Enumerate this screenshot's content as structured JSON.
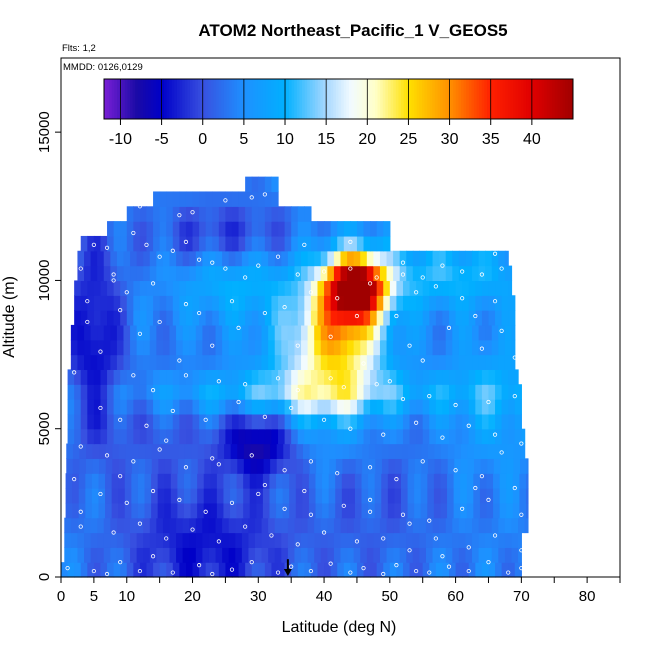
{
  "chart_data": {
    "type": "heatmap",
    "title": "ATOM2 Northeast_Pacific_1 V_GEOS5",
    "notes": [
      "Flts: 1,2",
      "MMDD: 0126,0129"
    ],
    "xlabel": "Latitude (deg N)",
    "ylabel": "Altitude (m)",
    "xlim": [
      0,
      85
    ],
    "ylim": [
      0,
      17500
    ],
    "x_ticks": [
      0,
      5,
      10,
      20,
      30,
      40,
      50,
      60,
      70,
      80
    ],
    "x_minor_ticks": [
      15,
      25,
      35,
      45,
      55,
      65,
      75,
      85
    ],
    "y_ticks": [
      0,
      5000,
      10000,
      15000
    ],
    "colorbar": {
      "min": -12,
      "max": 45,
      "step": 5,
      "tick_values": [
        -10,
        -5,
        0,
        5,
        10,
        15,
        20,
        25,
        30,
        35,
        40
      ],
      "tick_labels": [
        "-10",
        "-5",
        "0",
        "5",
        "10",
        "15",
        "20",
        "25",
        "30",
        "35",
        "40"
      ],
      "stops": [
        {
          "v": -12,
          "c": "#7a1fd6"
        },
        {
          "v": -8,
          "c": "#1a0aa6"
        },
        {
          "v": -5,
          "c": "#0000c8"
        },
        {
          "v": 0,
          "c": "#3850e0"
        },
        {
          "v": 5,
          "c": "#1e90ff"
        },
        {
          "v": 10,
          "c": "#00b0ff"
        },
        {
          "v": 15,
          "c": "#a8d8ff"
        },
        {
          "v": 18,
          "c": "#f2fbff"
        },
        {
          "v": 21,
          "c": "#ffffc8"
        },
        {
          "v": 25,
          "c": "#ffe000"
        },
        {
          "v": 30,
          "c": "#ff9000"
        },
        {
          "v": 35,
          "c": "#ff2000"
        },
        {
          "v": 40,
          "c": "#e00000"
        },
        {
          "v": 45,
          "c": "#a00000"
        }
      ]
    },
    "region": {
      "altitude_step": 500,
      "profile": [
        {
          "alt": 0,
          "lat": [
            0,
            70
          ]
        },
        {
          "alt": 500,
          "lat": [
            0.5,
            70
          ]
        },
        {
          "alt": 1000,
          "lat": [
            0.5,
            70
          ]
        },
        {
          "alt": 1500,
          "lat": [
            0.5,
            71
          ]
        },
        {
          "alt": 2000,
          "lat": [
            0.7,
            71
          ]
        },
        {
          "alt": 2500,
          "lat": [
            0.7,
            71
          ]
        },
        {
          "alt": 3000,
          "lat": [
            0.7,
            71
          ]
        },
        {
          "alt": 3500,
          "lat": [
            0.8,
            71
          ]
        },
        {
          "alt": 4000,
          "lat": [
            0.8,
            70.5
          ]
        },
        {
          "alt": 4500,
          "lat": [
            1,
            70.5
          ]
        },
        {
          "alt": 5000,
          "lat": [
            1,
            70
          ]
        },
        {
          "alt": 5500,
          "lat": [
            1,
            70
          ]
        },
        {
          "alt": 6000,
          "lat": [
            1,
            70
          ]
        },
        {
          "alt": 6500,
          "lat": [
            1,
            69.5
          ]
        },
        {
          "alt": 7000,
          "lat": [
            1.5,
            69
          ]
        },
        {
          "alt": 7500,
          "lat": [
            1.5,
            69
          ]
        },
        {
          "alt": 8000,
          "lat": [
            1.5,
            69
          ]
        },
        {
          "alt": 8500,
          "lat": [
            2,
            69
          ]
        },
        {
          "alt": 9000,
          "lat": [
            2,
            69
          ]
        },
        {
          "alt": 9500,
          "lat": [
            2,
            68.5
          ]
        },
        {
          "alt": 10000,
          "lat": [
            2.5,
            68.5
          ]
        },
        {
          "alt": 10500,
          "lat": [
            2.5,
            68
          ]
        },
        {
          "alt": 11000,
          "lat": [
            3,
            50
          ]
        },
        {
          "alt": 11500,
          "lat": [
            7,
            50
          ]
        },
        {
          "alt": 12000,
          "lat": [
            10,
            38
          ]
        },
        {
          "alt": 12500,
          "lat": [
            14,
            33
          ]
        },
        {
          "alt": 13000,
          "lat": [
            28,
            33
          ]
        }
      ]
    },
    "value_field": {
      "base": 4,
      "features": [
        {
          "lat": 45,
          "alt": 9800,
          "slat": 3,
          "salt": 700,
          "amp": 38
        },
        {
          "lat": 43,
          "alt": 8600,
          "slat": 4,
          "salt": 1400,
          "amp": 16
        },
        {
          "lat": 40,
          "alt": 7400,
          "slat": 6,
          "salt": 1800,
          "amp": 12
        },
        {
          "lat": 37,
          "alt": 6200,
          "slat": 20,
          "salt": 500,
          "amp": 7
        },
        {
          "lat": 58,
          "alt": 10200,
          "slat": 10,
          "salt": 800,
          "amp": 7
        },
        {
          "lat": 26,
          "alt": 10000,
          "slat": 6,
          "salt": 900,
          "amp": 6
        },
        {
          "lat": 66,
          "alt": 6000,
          "slat": 5,
          "salt": 1500,
          "amp": 5
        },
        {
          "lat": 30,
          "alt": 4500,
          "slat": 4,
          "salt": 800,
          "amp": -12
        },
        {
          "lat": 22,
          "alt": 1000,
          "slat": 9,
          "salt": 1500,
          "amp": -8
        },
        {
          "lat": 5,
          "alt": 8000,
          "slat": 3,
          "salt": 2500,
          "amp": -9
        },
        {
          "lat": 25,
          "alt": 11500,
          "slat": 8,
          "salt": 800,
          "amp": -6
        },
        {
          "lat": 48,
          "alt": 2500,
          "slat": 8,
          "salt": 2000,
          "amp": -3
        },
        {
          "lat": 15,
          "alt": 5000,
          "slat": 6,
          "salt": 1500,
          "amp": -3
        }
      ]
    },
    "observations": [
      [
        2,
        11200
      ],
      [
        3,
        10400
      ],
      [
        4,
        9300
      ],
      [
        5,
        11200
      ],
      [
        7,
        11100
      ],
      [
        8,
        10200
      ],
      [
        11,
        11600
      ],
      [
        13,
        11200
      ],
      [
        15,
        10800
      ],
      [
        17,
        11000
      ],
      [
        19,
        11300
      ],
      [
        21,
        10700
      ],
      [
        23,
        10600
      ],
      [
        25,
        10400
      ],
      [
        28,
        10100
      ],
      [
        30,
        10500
      ],
      [
        33,
        10800
      ],
      [
        36,
        10200
      ],
      [
        40,
        10300
      ],
      [
        44,
        10400
      ],
      [
        48,
        10100
      ],
      [
        52,
        10200
      ],
      [
        55,
        10100
      ],
      [
        58,
        10500
      ],
      [
        61,
        10300
      ],
      [
        64,
        10200
      ],
      [
        67,
        10400
      ],
      [
        9,
        9000
      ],
      [
        12,
        8200
      ],
      [
        15,
        8600
      ],
      [
        19,
        9200
      ],
      [
        23,
        7800
      ],
      [
        27,
        8400
      ],
      [
        31,
        8900
      ],
      [
        36,
        7800
      ],
      [
        41,
        8100
      ],
      [
        46,
        7200
      ],
      [
        50,
        6600
      ],
      [
        53,
        7800
      ],
      [
        55,
        7300
      ],
      [
        59,
        8400
      ],
      [
        63,
        8800
      ],
      [
        66,
        9300
      ],
      [
        11,
        6800
      ],
      [
        14,
        6300
      ],
      [
        19,
        6800
      ],
      [
        24,
        6600
      ],
      [
        28,
        6500
      ],
      [
        33,
        6700
      ],
      [
        36,
        6300
      ],
      [
        43,
        6400
      ],
      [
        48,
        6500
      ],
      [
        52,
        6000
      ],
      [
        56,
        6100
      ],
      [
        60,
        5800
      ],
      [
        65,
        5900
      ],
      [
        69,
        6100
      ],
      [
        6,
        5700
      ],
      [
        9,
        5300
      ],
      [
        13,
        5100
      ],
      [
        17,
        5600
      ],
      [
        22,
        5300
      ],
      [
        27,
        5900
      ],
      [
        31,
        5400
      ],
      [
        35,
        5700
      ],
      [
        40,
        5300
      ],
      [
        44,
        5000
      ],
      [
        49,
        4800
      ],
      [
        54,
        5200
      ],
      [
        58,
        4700
      ],
      [
        62,
        5100
      ],
      [
        66,
        4800
      ],
      [
        70,
        4500
      ],
      [
        3,
        4400
      ],
      [
        7,
        4100
      ],
      [
        11,
        3900
      ],
      [
        15,
        4300
      ],
      [
        19,
        3700
      ],
      [
        24,
        3800
      ],
      [
        29,
        4100
      ],
      [
        34,
        3600
      ],
      [
        38,
        3900
      ],
      [
        42,
        3500
      ],
      [
        47,
        3700
      ],
      [
        51,
        3300
      ],
      [
        55,
        3900
      ],
      [
        60,
        3600
      ],
      [
        64,
        3400
      ],
      [
        69,
        3000
      ],
      [
        2,
        3300
      ],
      [
        6,
        2800
      ],
      [
        10,
        2500
      ],
      [
        14,
        2900
      ],
      [
        18,
        2600
      ],
      [
        22,
        2200
      ],
      [
        26,
        2500
      ],
      [
        30,
        2800
      ],
      [
        34,
        2300
      ],
      [
        38,
        2100
      ],
      [
        43,
        2400
      ],
      [
        47,
        2600
      ],
      [
        52,
        2100
      ],
      [
        56,
        1900
      ],
      [
        61,
        2300
      ],
      [
        65,
        2600
      ],
      [
        70,
        2100
      ],
      [
        3,
        1700
      ],
      [
        8,
        1500
      ],
      [
        12,
        1800
      ],
      [
        16,
        1300
      ],
      [
        20,
        1600
      ],
      [
        24,
        1200
      ],
      [
        28,
        1700
      ],
      [
        32,
        1400
      ],
      [
        36,
        1100
      ],
      [
        40,
        1500
      ],
      [
        45,
        1200
      ],
      [
        49,
        1300
      ],
      [
        53,
        900
      ],
      [
        57,
        1300
      ],
      [
        62,
        1000
      ],
      [
        66,
        1400
      ],
      [
        70,
        900
      ],
      [
        1,
        300
      ],
      [
        5,
        200
      ],
      [
        7,
        100
      ],
      [
        9,
        500
      ],
      [
        12,
        200
      ],
      [
        14,
        700
      ],
      [
        17,
        150
      ],
      [
        21,
        400
      ],
      [
        23,
        100
      ],
      [
        26,
        250
      ],
      [
        29,
        500
      ],
      [
        33,
        150
      ],
      [
        35,
        350
      ],
      [
        38,
        200
      ],
      [
        41,
        450
      ],
      [
        44,
        150
      ],
      [
        46,
        300
      ],
      [
        49,
        100
      ],
      [
        51,
        400
      ],
      [
        54,
        200
      ],
      [
        56,
        150
      ],
      [
        59,
        350
      ],
      [
        62,
        200
      ],
      [
        65,
        500
      ],
      [
        68,
        150
      ],
      [
        70,
        300
      ],
      [
        29,
        12800
      ],
      [
        31,
        12900
      ],
      [
        25,
        12700
      ],
      [
        18,
        12200
      ],
      [
        40,
        12100
      ],
      [
        8,
        10000
      ],
      [
        4,
        8600
      ],
      [
        2,
        6900
      ],
      [
        6,
        7600
      ],
      [
        10,
        9600
      ],
      [
        14,
        9900
      ],
      [
        18,
        7300
      ],
      [
        21,
        8900
      ],
      [
        26,
        9300
      ],
      [
        34,
        9100
      ],
      [
        38,
        9600
      ],
      [
        42,
        9400
      ],
      [
        45,
        8800
      ],
      [
        51,
        8800
      ],
      [
        54,
        9600
      ],
      [
        57,
        9800
      ],
      [
        61,
        9400
      ],
      [
        64,
        7700
      ],
      [
        67,
        8300
      ],
      [
        69,
        7400
      ],
      [
        37,
        11200
      ],
      [
        44,
        11300
      ],
      [
        20,
        12300
      ],
      [
        12,
        12500
      ],
      [
        47,
        2200
      ],
      [
        53,
        1800
      ],
      [
        58,
        700
      ],
      [
        63,
        3000
      ],
      [
        67,
        4200
      ],
      [
        71,
        4900
      ],
      [
        3,
        2200
      ],
      [
        9,
        3400
      ],
      [
        16,
        4600
      ],
      [
        23,
        4000
      ],
      [
        31,
        3100
      ],
      [
        37,
        2900
      ],
      [
        41,
        6700
      ],
      [
        47,
        9900
      ],
      [
        52,
        10600
      ],
      [
        60,
        11100
      ],
      [
        66,
        10900
      ]
    ],
    "marker": {
      "lat": 34.5,
      "alt_from": 600,
      "alt_to": 0
    }
  }
}
